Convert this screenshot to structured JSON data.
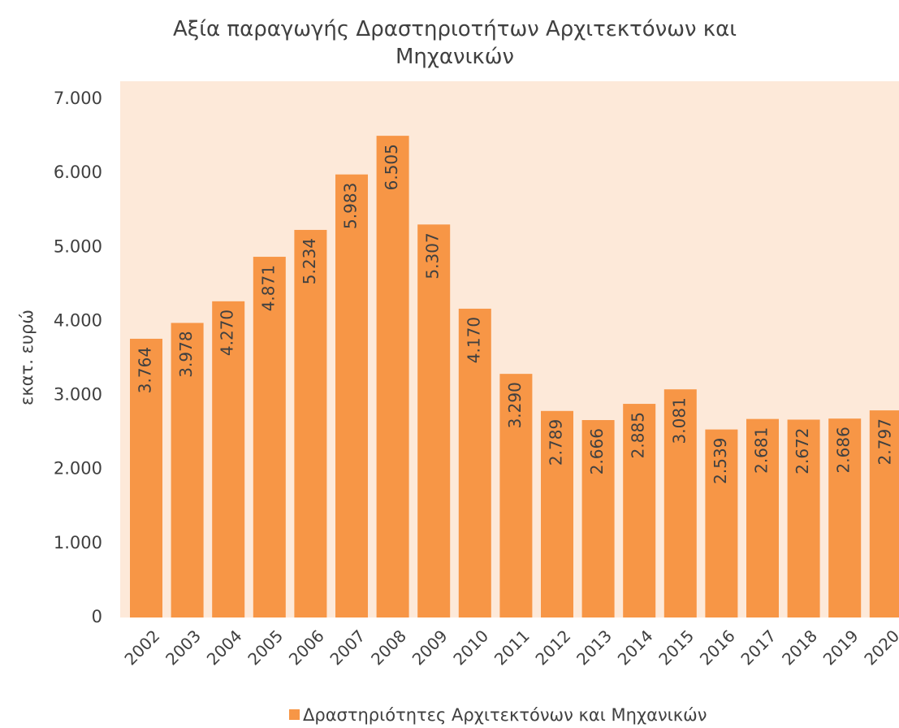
{
  "chart_data": {
    "type": "bar",
    "title": "Αξία παραγωγής Δραστηριοτήτων Αρχιτεκτόνων και Μηχανικών",
    "y_label": "εκατ. ευρώ",
    "categories": [
      "2002",
      "2003",
      "2004",
      "2005",
      "2006",
      "2007",
      "2008",
      "2009",
      "2010",
      "2011",
      "2012",
      "2013",
      "2014",
      "2015",
      "2016",
      "2017",
      "2018",
      "2019",
      "2020"
    ],
    "series": [
      {
        "name": "Δραστηριότητες Αρχιτεκτόνων και Μηχανικών",
        "color": "#f79646",
        "values": [
          3764,
          3978,
          4270,
          4871,
          5234,
          5983,
          6505,
          5307,
          4170,
          3290,
          2789,
          2666,
          2885,
          3081,
          2539,
          2681,
          2672,
          2686,
          2797
        ],
        "value_labels": [
          "3.764",
          "3.978",
          "4.270",
          "4.871",
          "5.234",
          "5.983",
          "6.505",
          "5.307",
          "4.170",
          "3.290",
          "2.789",
          "2.666",
          "2.885",
          "3.081",
          "2.539",
          "2.681",
          "2.672",
          "2.686",
          "2.797"
        ]
      }
    ],
    "ylim": [
      0,
      7000
    ],
    "yticks": [
      {
        "value": 0,
        "label": "0"
      },
      {
        "value": 1000,
        "label": "1.000"
      },
      {
        "value": 2000,
        "label": "2.000"
      },
      {
        "value": 3000,
        "label": "3.000"
      },
      {
        "value": 4000,
        "label": "4.000"
      },
      {
        "value": 5000,
        "label": "5.000"
      },
      {
        "value": 6000,
        "label": "6.000"
      },
      {
        "value": 7000,
        "label": "7.000"
      }
    ],
    "plot_background": "#fde9d9",
    "legend": "bottom"
  }
}
